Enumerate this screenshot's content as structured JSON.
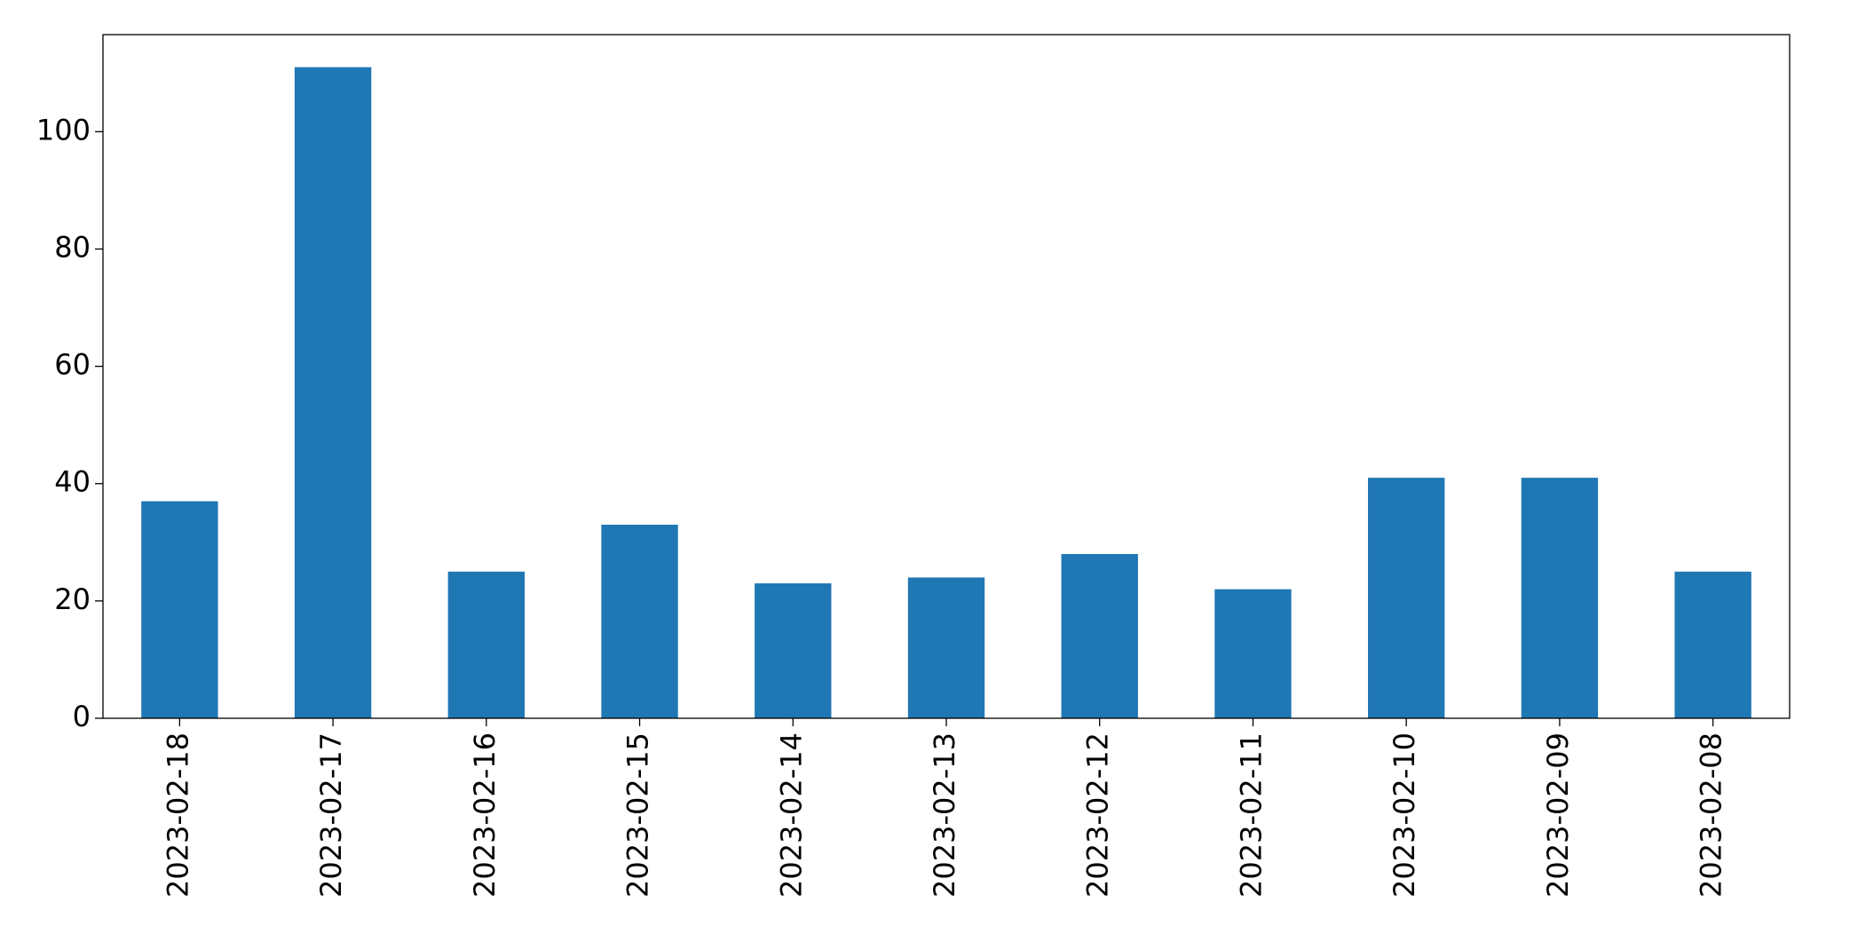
{
  "chart_data": {
    "type": "bar",
    "categories": [
      "2023-02-18",
      "2023-02-17",
      "2023-02-16",
      "2023-02-15",
      "2023-02-14",
      "2023-02-13",
      "2023-02-12",
      "2023-02-11",
      "2023-02-10",
      "2023-02-09",
      "2023-02-08"
    ],
    "values": [
      37,
      111,
      25,
      33,
      23,
      24,
      28,
      22,
      41,
      41,
      25
    ],
    "color": "#1f77b4",
    "ylim": [
      0,
      116.55
    ],
    "yticks": [
      0,
      20,
      40,
      60,
      80,
      100
    ],
    "grid": false
  }
}
